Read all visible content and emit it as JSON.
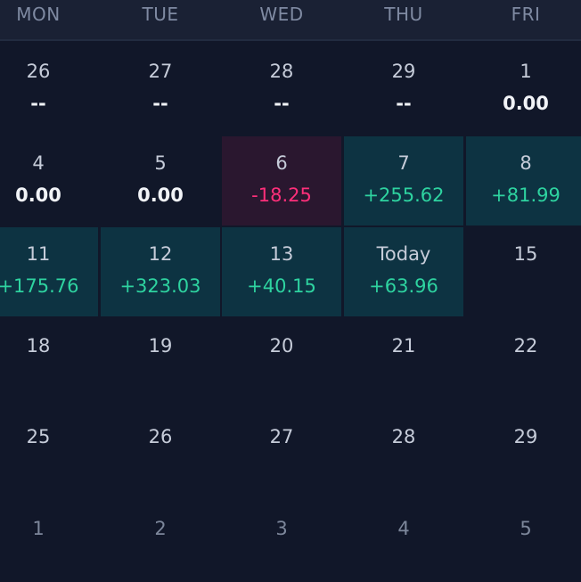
{
  "weekdays": [
    "MON",
    "TUE",
    "WED",
    "THU",
    "FRI"
  ],
  "colors": {
    "background": "#111729",
    "positive_bg": "#0d3342",
    "negative_bg": "#2a172f",
    "positive_text": "#2ed3a0",
    "negative_text": "#ff2f7a"
  },
  "weeks": [
    [
      {
        "day": "26",
        "value": "--",
        "state": "neutral"
      },
      {
        "day": "27",
        "value": "--",
        "state": "neutral"
      },
      {
        "day": "28",
        "value": "--",
        "state": "neutral"
      },
      {
        "day": "29",
        "value": "--",
        "state": "neutral"
      },
      {
        "day": "1",
        "value": "0.00",
        "state": "neutral"
      }
    ],
    [
      {
        "day": "4",
        "value": "0.00",
        "state": "neutral"
      },
      {
        "day": "5",
        "value": "0.00",
        "state": "neutral"
      },
      {
        "day": "6",
        "value": "-18.25",
        "state": "negative"
      },
      {
        "day": "7",
        "value": "+255.62",
        "state": "positive"
      },
      {
        "day": "8",
        "value": "+81.99",
        "state": "positive"
      }
    ],
    [
      {
        "day": "11",
        "value": "+175.76",
        "state": "positive"
      },
      {
        "day": "12",
        "value": "+323.03",
        "state": "positive"
      },
      {
        "day": "13",
        "value": "+40.15",
        "state": "positive"
      },
      {
        "day": "Today",
        "value": "+63.96",
        "state": "positive"
      },
      {
        "day": "15",
        "value": "",
        "state": "empty"
      }
    ],
    [
      {
        "day": "18",
        "value": "",
        "state": "empty"
      },
      {
        "day": "19",
        "value": "",
        "state": "empty"
      },
      {
        "day": "20",
        "value": "",
        "state": "empty"
      },
      {
        "day": "21",
        "value": "",
        "state": "empty"
      },
      {
        "day": "22",
        "value": "",
        "state": "empty"
      }
    ],
    [
      {
        "day": "25",
        "value": "",
        "state": "empty"
      },
      {
        "day": "26",
        "value": "",
        "state": "empty"
      },
      {
        "day": "27",
        "value": "",
        "state": "empty"
      },
      {
        "day": "28",
        "value": "",
        "state": "empty"
      },
      {
        "day": "29",
        "value": "",
        "state": "empty"
      }
    ],
    [
      {
        "day": "1",
        "value": "",
        "state": "outside"
      },
      {
        "day": "2",
        "value": "",
        "state": "outside"
      },
      {
        "day": "3",
        "value": "",
        "state": "outside"
      },
      {
        "day": "4",
        "value": "",
        "state": "outside"
      },
      {
        "day": "5",
        "value": "",
        "state": "outside"
      }
    ]
  ]
}
